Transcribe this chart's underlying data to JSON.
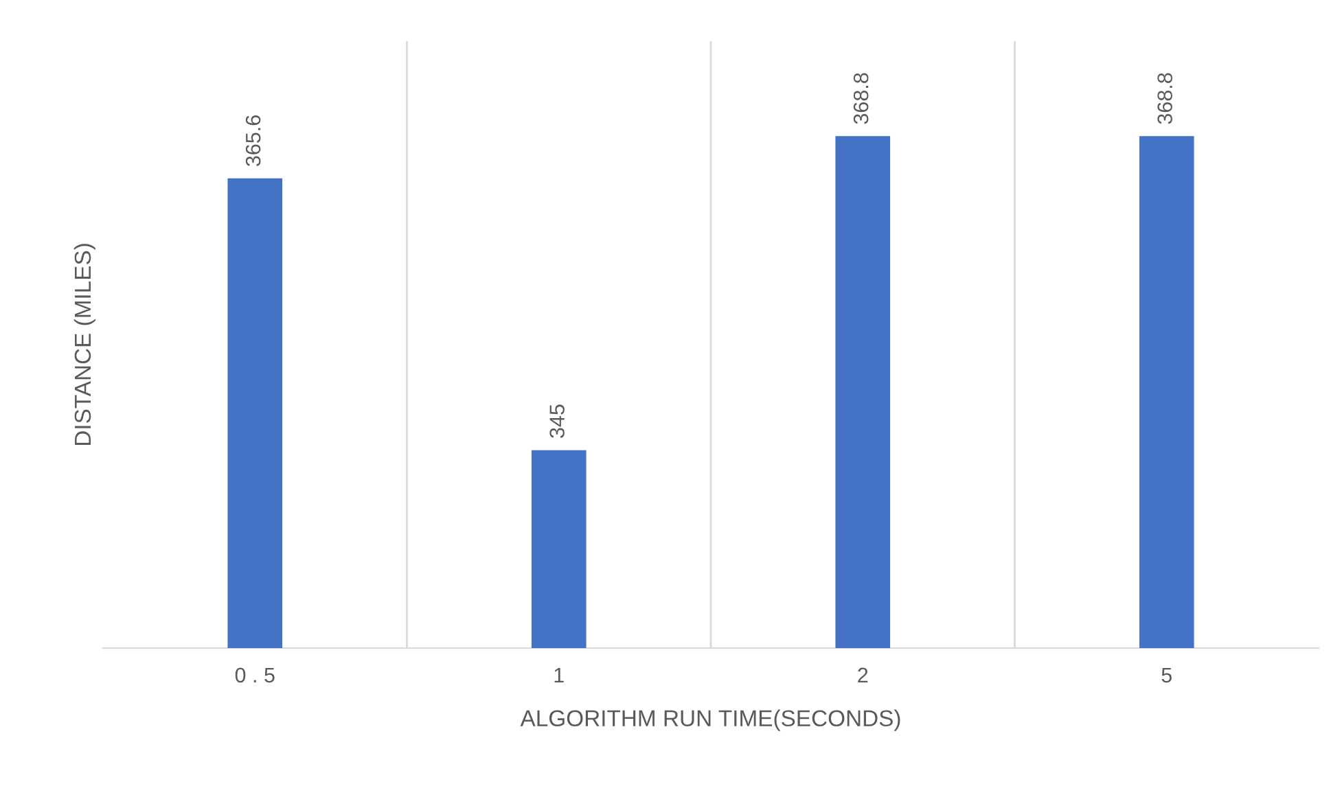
{
  "chart_data": {
    "type": "bar",
    "xlabel": "ALGORITHM RUN TIME(SECONDS)",
    "ylabel": "DISTANCE (MILES)",
    "categories": [
      "0 . 5",
      "1",
      "2",
      "5"
    ],
    "values": [
      365.6,
      345,
      368.8,
      368.8
    ],
    "color": "#4472c4",
    "ylim": [
      330,
      376
    ],
    "data_labels": true,
    "grid": "x",
    "tick_labels": "x"
  }
}
